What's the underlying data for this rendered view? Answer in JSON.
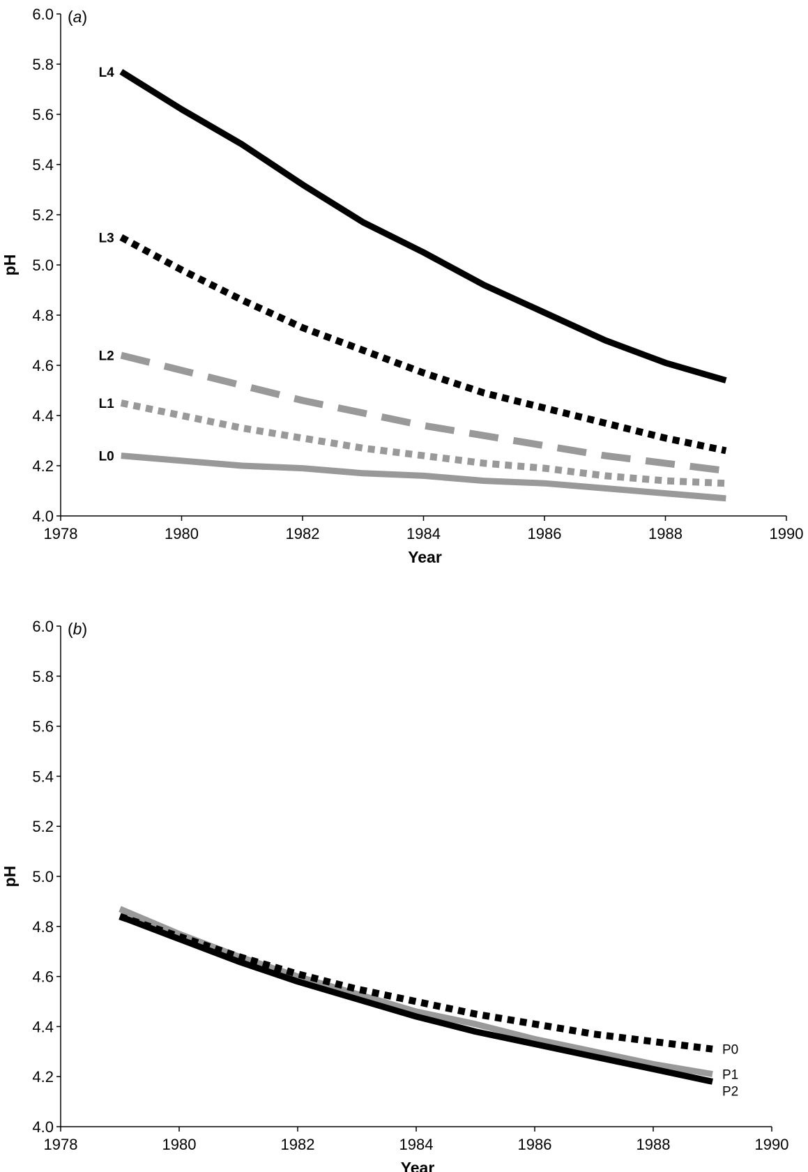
{
  "chart_data": [
    {
      "type": "line",
      "panel_label_prefix": "(",
      "panel_label_letter": "a",
      "panel_label_suffix": ")",
      "xlabel": "Year",
      "ylabel": "pH",
      "xlim": [
        1978,
        1990
      ],
      "ylim": [
        4.0,
        6.0
      ],
      "xticks": [
        "1978",
        "1980",
        "1982",
        "1984",
        "1986",
        "1988",
        "1990"
      ],
      "yticks": [
        "4.0",
        "4.2",
        "4.4",
        "4.6",
        "4.8",
        "5.0",
        "5.2",
        "5.4",
        "5.6",
        "5.8",
        "6.0"
      ],
      "grid": false,
      "series": [
        {
          "name": "L4",
          "color": "#000000",
          "style": "solid",
          "label_side": "left",
          "x": [
            1979,
            1980,
            1981,
            1982,
            1983,
            1984,
            1985,
            1986,
            1987,
            1988,
            1989
          ],
          "y": [
            5.77,
            5.62,
            5.48,
            5.32,
            5.17,
            5.05,
            4.92,
            4.81,
            4.7,
            4.61,
            4.54
          ]
        },
        {
          "name": "L3",
          "color": "#000000",
          "style": "dotted",
          "label_side": "left",
          "x": [
            1979,
            1980,
            1981,
            1982,
            1983,
            1984,
            1985,
            1986,
            1987,
            1988,
            1989
          ],
          "y": [
            5.11,
            4.98,
            4.86,
            4.75,
            4.66,
            4.57,
            4.49,
            4.43,
            4.37,
            4.31,
            4.26
          ]
        },
        {
          "name": "L2",
          "color": "#999999",
          "style": "dashed",
          "label_side": "left",
          "x": [
            1979,
            1980,
            1981,
            1982,
            1983,
            1984,
            1985,
            1986,
            1987,
            1988,
            1989
          ],
          "y": [
            4.64,
            4.58,
            4.52,
            4.46,
            4.41,
            4.36,
            4.32,
            4.28,
            4.24,
            4.21,
            4.18
          ]
        },
        {
          "name": "L1",
          "color": "#999999",
          "style": "dotted",
          "label_side": "left",
          "x": [
            1979,
            1980,
            1981,
            1982,
            1983,
            1984,
            1985,
            1986,
            1987,
            1988,
            1989
          ],
          "y": [
            4.45,
            4.4,
            4.35,
            4.31,
            4.27,
            4.24,
            4.21,
            4.19,
            4.16,
            4.14,
            4.13
          ]
        },
        {
          "name": "L0",
          "color": "#999999",
          "style": "solid",
          "label_side": "left",
          "x": [
            1979,
            1980,
            1981,
            1982,
            1983,
            1984,
            1985,
            1986,
            1987,
            1988,
            1989
          ],
          "y": [
            4.24,
            4.22,
            4.2,
            4.19,
            4.17,
            4.16,
            4.14,
            4.13,
            4.11,
            4.09,
            4.07
          ]
        }
      ]
    },
    {
      "type": "line",
      "panel_label_prefix": "(",
      "panel_label_letter": "b",
      "panel_label_suffix": ")",
      "xlabel": "Year",
      "ylabel": "pH",
      "xlim": [
        1978,
        1990
      ],
      "ylim": [
        4.0,
        6.0
      ],
      "xticks": [
        "1978",
        "1980",
        "1982",
        "1984",
        "1986",
        "1988",
        "1990"
      ],
      "yticks": [
        "4.0",
        "4.2",
        "4.4",
        "4.6",
        "4.8",
        "5.0",
        "5.2",
        "5.4",
        "5.6",
        "5.8",
        "6.0"
      ],
      "grid": false,
      "series": [
        {
          "name": "P1",
          "color": "#999999",
          "style": "solid",
          "label_side": "right",
          "x": [
            1979,
            1980,
            1981,
            1982,
            1983,
            1984,
            1985,
            1986,
            1987,
            1988,
            1989
          ],
          "y": [
            4.87,
            4.77,
            4.68,
            4.6,
            4.53,
            4.46,
            4.41,
            4.35,
            4.3,
            4.25,
            4.21
          ]
        },
        {
          "name": "P2",
          "color": "#000000",
          "style": "solid",
          "label_side": "right",
          "x": [
            1979,
            1980,
            1981,
            1982,
            1983,
            1984,
            1985,
            1986,
            1987,
            1988,
            1989
          ],
          "y": [
            4.84,
            4.75,
            4.66,
            4.58,
            4.51,
            4.44,
            4.38,
            4.33,
            4.28,
            4.23,
            4.18
          ]
        },
        {
          "name": "P0",
          "color": "#000000",
          "style": "dotted",
          "label_side": "right",
          "x": [
            1979,
            1980,
            1981,
            1982,
            1983,
            1984,
            1985,
            1986,
            1987,
            1988,
            1989
          ],
          "y": [
            4.84,
            4.76,
            4.68,
            4.61,
            4.55,
            4.5,
            4.45,
            4.41,
            4.37,
            4.34,
            4.31
          ]
        }
      ]
    }
  ]
}
